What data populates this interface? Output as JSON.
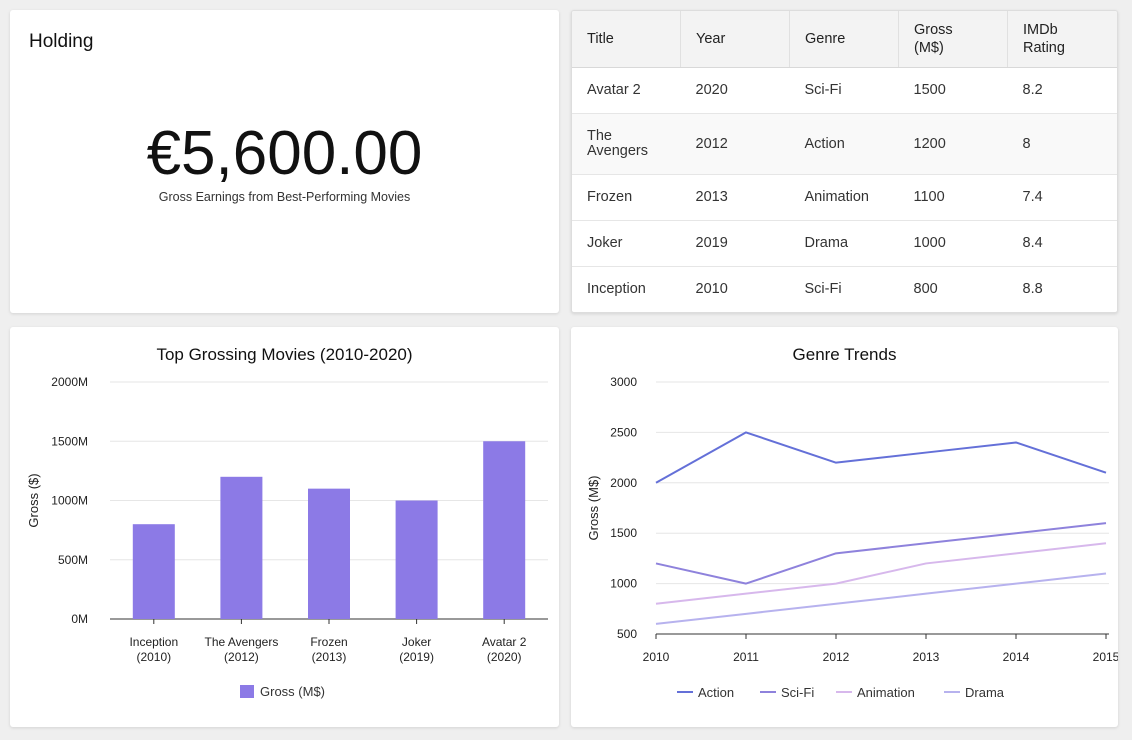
{
  "holding": {
    "title": "Holding",
    "value": "€5,600.00",
    "subtitle": "Gross Earnings from Best-Performing Movies"
  },
  "table": {
    "columns": [
      "Title",
      "Year",
      "Genre",
      "Gross\n(M$)",
      "IMDb\nRating"
    ],
    "rows": [
      [
        "Avatar 2",
        "2020",
        "Sci-Fi",
        "1500",
        "8.2"
      ],
      [
        "The\nAvengers",
        "2012",
        "Action",
        "1200",
        "8"
      ],
      [
        "Frozen",
        "2013",
        "Animation",
        "1100",
        "7.4"
      ],
      [
        "Joker",
        "2019",
        "Drama",
        "1000",
        "8.4"
      ],
      [
        "Inception",
        "2010",
        "Sci-Fi",
        "800",
        "8.8"
      ]
    ]
  },
  "chart_data": [
    {
      "type": "bar",
      "title": "Top Grossing Movies (2010-2020)",
      "xlabel": "",
      "ylabel": "Gross ($)",
      "categories": [
        [
          "Inception",
          "(2010)"
        ],
        [
          "The Avengers",
          "(2012)"
        ],
        [
          "Frozen",
          "(2013)"
        ],
        [
          "Joker",
          "(2019)"
        ],
        [
          "Avatar 2",
          "(2020)"
        ]
      ],
      "series": [
        {
          "name": "Gross (M$)",
          "values": [
            800,
            1200,
            1100,
            1000,
            1500
          ],
          "color": "#8c7ae6"
        }
      ],
      "ylim": [
        0,
        2000
      ],
      "yticks": [
        "0M",
        "500M",
        "1000M",
        "1500M",
        "2000M"
      ],
      "grid": true,
      "legend": "bottom"
    },
    {
      "type": "line",
      "title": "Genre Trends",
      "xlabel": "",
      "ylabel": "Gross (M$)",
      "x": [
        2010,
        2011,
        2012,
        2013,
        2014,
        2015
      ],
      "series": [
        {
          "name": "Action",
          "values": [
            2000,
            2500,
            2200,
            2300,
            2400,
            2100
          ],
          "color": "#6470d8"
        },
        {
          "name": "Sci-Fi",
          "values": [
            1200,
            1000,
            1300,
            1400,
            1500,
            1600
          ],
          "color": "#8e82dc"
        },
        {
          "name": "Animation",
          "values": [
            800,
            900,
            1000,
            1200,
            1300,
            1400
          ],
          "color": "#d7b8ec"
        },
        {
          "name": "Drama",
          "values": [
            600,
            700,
            800,
            900,
            1000,
            1100
          ],
          "color": "#b7b2ee"
        }
      ],
      "ylim": [
        500,
        3000
      ],
      "yticks": [
        500,
        1000,
        1500,
        2000,
        2500,
        3000
      ],
      "grid": true,
      "legend": "bottom"
    }
  ]
}
